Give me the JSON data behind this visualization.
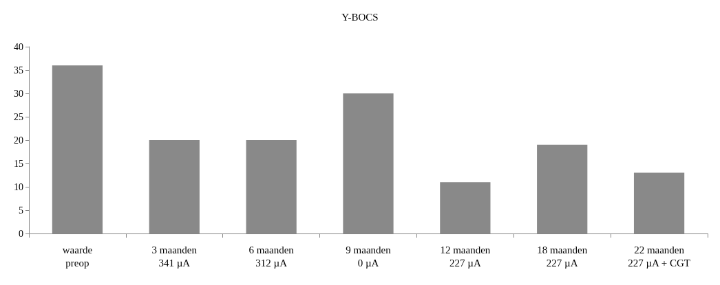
{
  "chart_data": {
    "type": "bar",
    "title": "Y-BOCS",
    "categories": [
      "waarde\npreop",
      "3 maanden\n341 µA",
      "6 maanden\n312 µA",
      "9 maanden\n0 µA",
      "12 maanden\n227 µA",
      "18 maanden\n227 µA",
      "22 maanden\n227 µA + CGT"
    ],
    "values": [
      36,
      20,
      20,
      30,
      11,
      19,
      13
    ],
    "color": "#898989",
    "ylim": [
      0,
      40
    ],
    "yticks": [
      0,
      5,
      10,
      15,
      20,
      25,
      30,
      35,
      40
    ],
    "grid": false
  }
}
